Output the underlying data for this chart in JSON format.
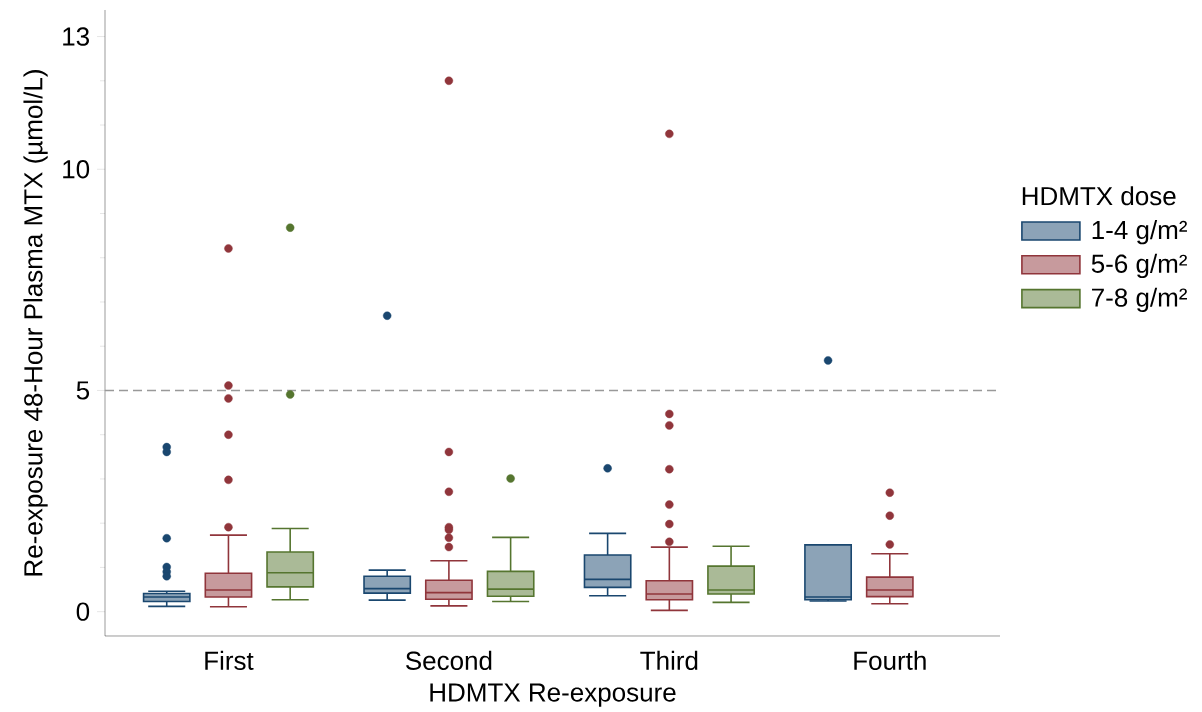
{
  "chart_data": {
    "type": "box",
    "xlabel": "HDMTX Re-exposure",
    "ylabel": "Re-exposure 48-Hour Plasma MTX (µmol/L)",
    "legend_title": "HDMTX dose",
    "categories": [
      "First",
      "Second",
      "Third",
      "Fourth"
    ],
    "ylim": [
      -0.55,
      13.6
    ],
    "yticks": [
      0,
      5,
      10,
      13,
      {
        "value": 1,
        "label": null
      },
      {
        "value": 2,
        "label": null
      },
      {
        "value": 3,
        "label": null
      },
      {
        "value": 4,
        "label": null
      },
      {
        "value": 6,
        "label": null
      },
      {
        "value": 7,
        "label": null
      },
      {
        "value": 8,
        "label": null
      },
      {
        "value": 9,
        "label": null
      },
      {
        "value": 11,
        "label": null
      },
      {
        "value": 12,
        "label": null
      }
    ],
    "series": [
      {
        "name": "1-4 g/m²",
        "color": "#1a476f",
        "boxes": [
          {
            "low": 0.12,
            "q1": 0.23,
            "median": 0.33,
            "q3": 0.41,
            "high": 0.46,
            "outliers": [
              3.72,
              3.61,
              1.66,
              1.01,
              0.9,
              0.8
            ]
          },
          {
            "low": 0.26,
            "q1": 0.42,
            "median": 0.52,
            "q3": 0.8,
            "high": 0.94,
            "outliers": [
              6.69
            ]
          },
          {
            "low": 0.36,
            "q1": 0.55,
            "median": 0.73,
            "q3": 1.28,
            "high": 1.77,
            "outliers": [
              3.24
            ]
          },
          {
            "low": 0.24,
            "q1": 0.27,
            "median": 0.33,
            "q3": 1.51,
            "high": 1.51,
            "outliers": [
              5.68
            ]
          }
        ]
      },
      {
        "name": "5-6 g/m²",
        "color": "#90353b",
        "boxes": [
          {
            "low": 0.11,
            "q1": 0.33,
            "median": 0.49,
            "q3": 0.87,
            "high": 1.73,
            "outliers": [
              8.21,
              5.11,
              4.82,
              4.0,
              2.98,
              1.91
            ]
          },
          {
            "low": 0.13,
            "q1": 0.28,
            "median": 0.43,
            "q3": 0.71,
            "high": 1.15,
            "outliers": [
              12.0,
              3.61,
              2.71,
              1.91,
              1.85,
              1.67,
              1.46
            ]
          },
          {
            "low": 0.03,
            "q1": 0.27,
            "median": 0.4,
            "q3": 0.7,
            "high": 1.46,
            "outliers": [
              10.8,
              4.47,
              4.21,
              3.22,
              2.42,
              1.98,
              1.58
            ]
          },
          {
            "low": 0.18,
            "q1": 0.34,
            "median": 0.49,
            "q3": 0.78,
            "high": 1.31,
            "outliers": [
              2.69,
              2.17,
              1.52
            ]
          }
        ]
      },
      {
        "name": "7-8 g/m²",
        "color": "#55752f",
        "boxes": [
          {
            "low": 0.27,
            "q1": 0.56,
            "median": 0.88,
            "q3": 1.35,
            "high": 1.88,
            "outliers": [
              8.68,
              4.91
            ]
          },
          {
            "low": 0.23,
            "q1": 0.35,
            "median": 0.51,
            "q3": 0.91,
            "high": 1.68,
            "outliers": [
              3.01
            ]
          },
          {
            "low": 0.21,
            "q1": 0.4,
            "median": 0.49,
            "q3": 1.03,
            "high": 1.48
          },
          null
        ]
      }
    ],
    "ref_lines": [
      {
        "axis": "y",
        "value": 5,
        "color": "#999999",
        "line_style": "dashed"
      }
    ],
    "legend": "right",
    "grid": false
  }
}
